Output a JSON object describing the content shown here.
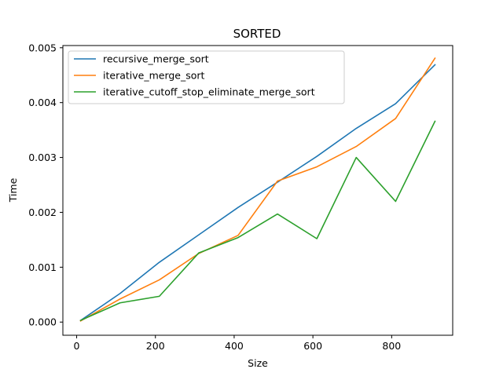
{
  "chart_data": {
    "type": "line",
    "title": "SORTED",
    "xlabel": "Size",
    "ylabel": "Time",
    "xlim": [
      -35,
      955
    ],
    "ylim": [
      -0.00024,
      0.00504
    ],
    "xticks": [
      0,
      200,
      400,
      600,
      800
    ],
    "xtick_labels": [
      "0",
      "200",
      "400",
      "600",
      "800"
    ],
    "yticks": [
      0.0,
      0.001,
      0.002,
      0.003,
      0.004,
      0.005
    ],
    "ytick_labels": [
      "0.000",
      "0.001",
      "0.002",
      "0.003",
      "0.004",
      "0.005"
    ],
    "grid": false,
    "legend_position": "upper-left",
    "x": [
      10,
      110,
      210,
      310,
      410,
      510,
      610,
      710,
      810,
      910
    ],
    "series": [
      {
        "name": "recursive_merge_sort",
        "color": "#1f77b4",
        "values": [
          3e-05,
          0.00052,
          0.00109,
          0.00159,
          0.00209,
          0.00255,
          0.00302,
          0.00353,
          0.00398,
          0.00469
        ]
      },
      {
        "name": "iterative_merge_sort",
        "color": "#ff7f0e",
        "values": [
          2e-05,
          0.00042,
          0.00077,
          0.00125,
          0.00158,
          0.00257,
          0.00283,
          0.0032,
          0.00371,
          0.00481
        ]
      },
      {
        "name": "iterative_cutoff_stop_eliminate_merge_sort",
        "color": "#2ca02c",
        "values": [
          3e-05,
          0.00035,
          0.00047,
          0.00126,
          0.00154,
          0.00197,
          0.00152,
          0.003,
          0.0022,
          0.00366
        ]
      }
    ]
  }
}
